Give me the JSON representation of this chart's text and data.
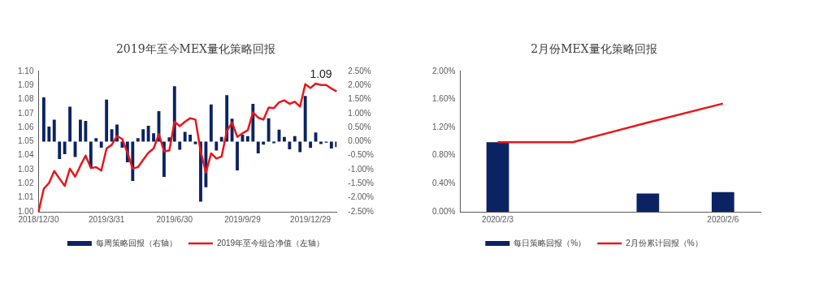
{
  "chart_data": [
    {
      "type": "bar",
      "title": "2019年至今MEX量化策略回报",
      "categories": [
        "2018/12/30",
        null,
        null,
        null,
        null,
        null,
        null,
        null,
        null,
        null,
        null,
        null,
        null,
        "2019/3/31",
        null,
        null,
        null,
        null,
        null,
        null,
        null,
        null,
        null,
        null,
        null,
        null,
        "2019/6/30",
        null,
        null,
        null,
        null,
        null,
        null,
        null,
        null,
        null,
        null,
        null,
        null,
        "2019/9/29",
        null,
        null,
        null,
        null,
        null,
        null,
        null,
        null,
        null,
        null,
        null,
        null,
        "2019/12/29",
        null,
        null,
        null,
        null,
        null
      ],
      "series": [
        {
          "name": "每周策略回报（右轴）",
          "axis": "y2",
          "color": "#0b2363",
          "values": [
            null,
            1.57,
            0.53,
            0.78,
            -0.62,
            -0.45,
            1.24,
            -0.55,
            0.78,
            0.73,
            -0.92,
            0.12,
            -0.22,
            1.49,
            0.44,
            0.6,
            -0.22,
            -0.74,
            -1.4,
            0.12,
            0.44,
            0.56,
            0.29,
            1.08,
            -1.26,
            0.15,
            1.97,
            -0.29,
            0.34,
            0.24,
            -0.1,
            -2.14,
            -1.63,
            1.32,
            -0.32,
            0.16,
            1.65,
            0.81,
            -1.03,
            0.24,
            0.19,
            1.34,
            -0.42,
            -0.11,
            0.83,
            -0.06,
            0.42,
            0.16,
            -0.28,
            0.19,
            -0.38,
            1.62,
            -0.23,
            0.32,
            -0.09,
            -0.04,
            -0.25,
            -0.2
          ]
        },
        {
          "name": "2019年至今组合净值（左轴）",
          "type": "line",
          "color": "#e8161b",
          "values": [
            1.0,
            1.0164,
            1.0205,
            1.029,
            1.0236,
            1.0184,
            1.0307,
            1.025,
            1.0328,
            1.04,
            1.0311,
            1.0318,
            1.0293,
            1.045,
            1.0477,
            1.0539,
            1.0518,
            1.042,
            1.0307,
            1.0318,
            1.0369,
            1.042,
            1.045,
            1.0553,
            1.043,
            1.0436,
            1.0641,
            1.0609,
            1.0641,
            1.0666,
            1.0656,
            1.043,
            1.0277,
            1.0416,
            1.0379,
            1.0393,
            1.0574,
            1.0635,
            1.0533,
            1.0559,
            1.058,
            1.0707,
            1.067,
            1.0656,
            1.0742,
            1.0738,
            1.0779,
            1.0793,
            1.0768,
            1.0783,
            1.0748,
            1.0908,
            1.0881,
            1.0912,
            1.0902,
            1.0902,
            1.0877,
            1.0857
          ]
        }
      ],
      "ylim": [
        1.0,
        1.1
      ],
      "yticks": [
        {
          "value": 1.0,
          "label": "1.00"
        },
        {
          "value": 1.01,
          "label": "1.01"
        },
        {
          "value": 1.02,
          "label": "1.02"
        },
        {
          "value": 1.03,
          "label": "1.03"
        },
        {
          "value": 1.04,
          "label": "1.04"
        },
        {
          "value": 1.05,
          "label": "1.05"
        },
        {
          "value": 1.06,
          "label": "1.06"
        },
        {
          "value": 1.07,
          "label": "1.07"
        },
        {
          "value": 1.08,
          "label": "1.08"
        },
        {
          "value": 1.09,
          "label": "1.09"
        },
        {
          "value": 1.1,
          "label": "1.10"
        }
      ],
      "y2lim": [
        -2.5,
        2.5
      ],
      "y2ticks": [
        {
          "value": -2.5,
          "label": "-2.50%"
        },
        {
          "value": -2.0,
          "label": "-2.00%"
        },
        {
          "value": -1.5,
          "label": "-1.50%"
        },
        {
          "value": -1.0,
          "label": "-1.00%"
        },
        {
          "value": -0.5,
          "label": "-0.50%"
        },
        {
          "value": 0,
          "label": "0.00%"
        },
        {
          "value": 0.5,
          "label": "0.50%"
        },
        {
          "value": 1.0,
          "label": "1.00%"
        },
        {
          "value": 1.5,
          "label": "1.50%"
        },
        {
          "value": 2.0,
          "label": "2.00%"
        },
        {
          "value": 2.5,
          "label": "2.50%"
        }
      ],
      "annotations": [
        {
          "text": "1.09",
          "y": 1.09
        }
      ],
      "grid": false,
      "legend": "bottom",
      "marker": "none"
    },
    {
      "type": "bar",
      "title": "2月份MEX量化策略回报",
      "categories": [
        "2020/2/3",
        null,
        null,
        "2020/2/6"
      ],
      "series": [
        {
          "name": "每日策略回报（%）",
          "color": "#0b2363",
          "values": [
            0.99,
            0,
            0.26,
            0.28
          ]
        },
        {
          "name": "2月份累计回报（%）",
          "type": "line",
          "color": "#e8161b",
          "values": [
            0.99,
            0.99,
            1.27,
            1.54
          ]
        }
      ],
      "ylim": [
        0,
        2
      ],
      "yticks": [
        {
          "value": 0,
          "label": "0.00%"
        },
        {
          "value": 0.4,
          "label": "0.40%"
        },
        {
          "value": 0.8,
          "label": "0.80%"
        },
        {
          "value": 1.2,
          "label": "1.20%"
        },
        {
          "value": 1.6,
          "label": "1.60%"
        },
        {
          "value": 2.0,
          "label": "2.00%"
        }
      ],
      "grid": false,
      "legend": "bottom",
      "marker": "none"
    }
  ]
}
